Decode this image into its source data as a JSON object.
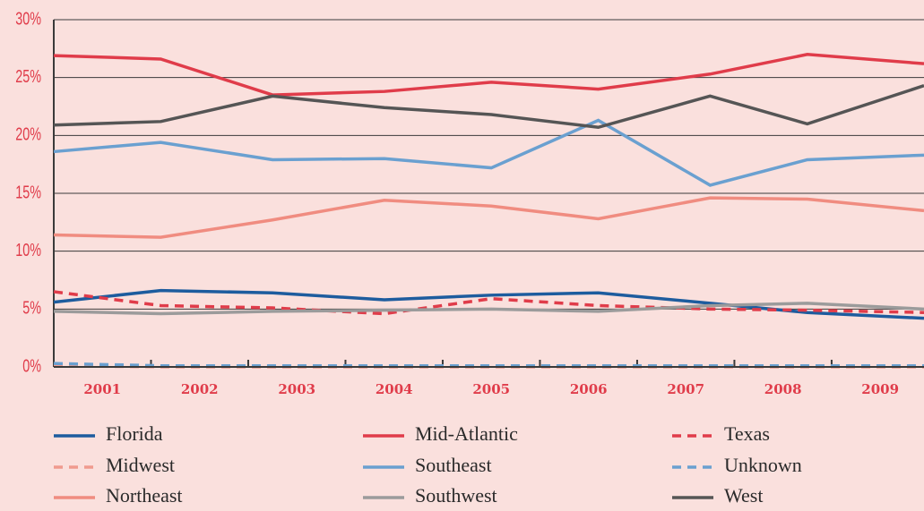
{
  "chart_data": {
    "type": "line",
    "x": [
      2000.5,
      2001.6,
      2002.75,
      2003.9,
      2005,
      2006.1,
      2007.25,
      2008.25,
      2009.45
    ],
    "xlim": [
      2000.5,
      2009.45
    ],
    "xticks": [
      2001,
      2002,
      2003,
      2004,
      2005,
      2006,
      2007,
      2008,
      2009
    ],
    "ylim": [
      0,
      30
    ],
    "yticks": [
      {
        "value": 0,
        "label": "0%"
      },
      {
        "value": 5,
        "label": "5%"
      },
      {
        "value": 10,
        "label": "10%"
      },
      {
        "value": 15,
        "label": "15%"
      },
      {
        "value": 20,
        "label": "20%"
      },
      {
        "value": 25,
        "label": "25%"
      },
      {
        "value": 30,
        "label": "30%"
      }
    ],
    "grid": true,
    "series": [
      {
        "name": "Florida",
        "color": "#1d5c9e",
        "dashed": false,
        "values": [
          5.6,
          6.6,
          6.4,
          5.8,
          6.2,
          6.4,
          5.5,
          4.7,
          4.2
        ]
      },
      {
        "name": "Mid-Atlantic",
        "color": "#e03c4a",
        "dashed": false,
        "values": [
          26.9,
          26.6,
          23.5,
          23.8,
          24.6,
          24.0,
          25.3,
          27.0,
          26.2
        ]
      },
      {
        "name": "Texas",
        "color": "#e03c4a",
        "dashed": true,
        "values": [
          6.5,
          5.3,
          5.1,
          4.6,
          5.9,
          5.3,
          5.0,
          4.9,
          4.7
        ]
      },
      {
        "name": "Midwest",
        "color": "#f09a8e",
        "dashed": true,
        "values": [
          0.1,
          0.0,
          0.0,
          0.0,
          0.0,
          0.0,
          0.0,
          0.0,
          0.0
        ]
      },
      {
        "name": "Southeast",
        "color": "#6aa0d0",
        "dashed": false,
        "values": [
          18.6,
          19.4,
          17.9,
          18.0,
          17.2,
          21.3,
          15.7,
          17.9,
          18.3
        ]
      },
      {
        "name": "Unknown",
        "color": "#6aa0d0",
        "dashed": true,
        "values": [
          0.3,
          0.1,
          0.1,
          0.1,
          0.1,
          0.1,
          0.1,
          0.1,
          0.1
        ]
      },
      {
        "name": "Northeast",
        "color": "#f08c80",
        "dashed": false,
        "values": [
          11.4,
          11.2,
          12.7,
          14.4,
          13.9,
          12.8,
          14.6,
          14.5,
          13.5
        ]
      },
      {
        "name": "Southwest",
        "color": "#9b9b9b",
        "dashed": false,
        "values": [
          4.8,
          4.6,
          4.8,
          4.9,
          5.0,
          4.8,
          5.3,
          5.5,
          5.0
        ]
      },
      {
        "name": "West",
        "color": "#555555",
        "dashed": false,
        "values": [
          20.9,
          21.2,
          23.4,
          22.4,
          21.8,
          20.7,
          23.4,
          21.0,
          24.3
        ]
      }
    ]
  }
}
